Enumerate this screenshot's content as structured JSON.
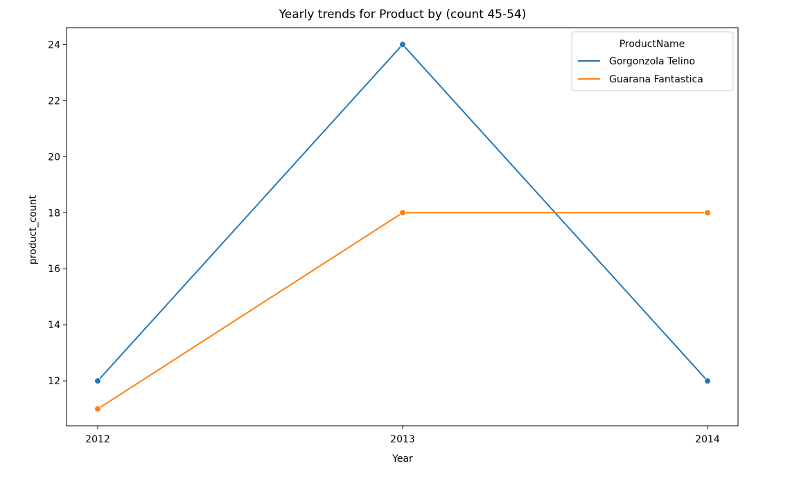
{
  "chart_data": {
    "type": "line",
    "title": "Yearly trends for Product by (count 45-54)",
    "xlabel": "Year",
    "ylabel": "product_count",
    "x": [
      2012,
      2013,
      2014
    ],
    "x_tick_labels": [
      "2012",
      "2013",
      "2014"
    ],
    "ylim": [
      10.4,
      24.6
    ],
    "y_ticks": [
      12,
      14,
      16,
      18,
      20,
      22,
      24
    ],
    "y_tick_labels": [
      "12",
      "14",
      "16",
      "18",
      "20",
      "22",
      "24"
    ],
    "grid": false,
    "legend": {
      "title": "ProductName",
      "placement": "top-right"
    },
    "series": [
      {
        "name": "Gorgonzola Telino",
        "color": "#1f77b4",
        "values": [
          12,
          24,
          12
        ],
        "marker": "circle"
      },
      {
        "name": "Guarana Fantastica",
        "color": "#ff7f0e",
        "values": [
          11,
          18,
          18
        ],
        "marker": "circle"
      }
    ]
  }
}
